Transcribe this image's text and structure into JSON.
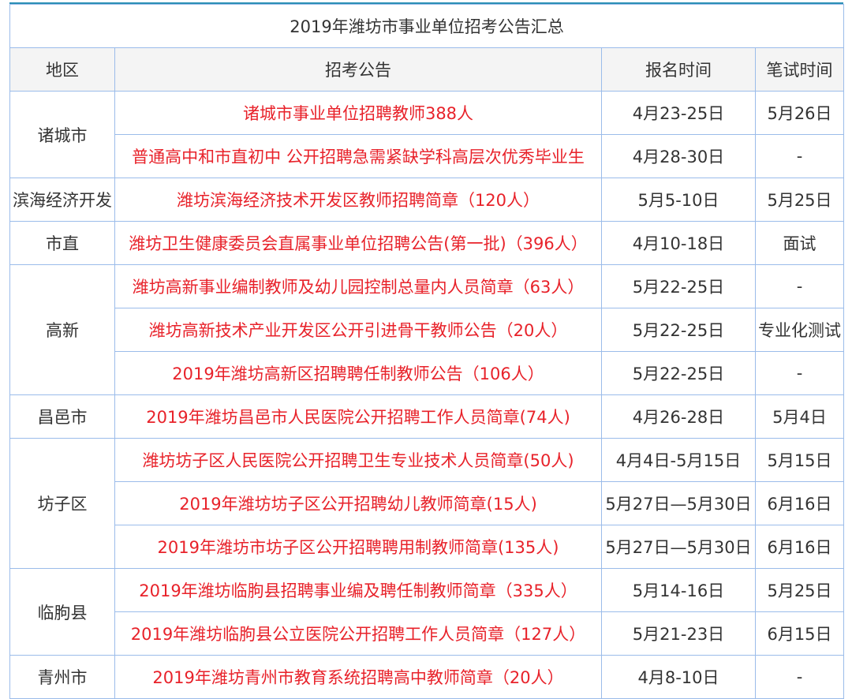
{
  "title": "2019年潍坊市事业单位招考公告汇总",
  "headers": [
    "地区",
    "招考公告",
    "报名时间",
    "笔试时间"
  ],
  "colors": {
    "notice_text": "#e8222a",
    "border": "#9bbcea",
    "header_bg": "#f4f4f4",
    "top_line": "#2a8fb5"
  },
  "groups": [
    {
      "region": "诸城市",
      "rows": [
        {
          "notice": "诸城市事业单位招聘教师388人",
          "signup": "4月23-25日",
          "exam": "5月26日"
        },
        {
          "notice": "普通高中和市直初中 公开招聘急需紧缺学科高层次优秀毕业生",
          "signup": "4月28-30日",
          "exam": "-"
        }
      ]
    },
    {
      "region": "滨海经济开发",
      "rows": [
        {
          "notice": "潍坊滨海经济技术开发区教师招聘简章（120人）",
          "signup": "5月5-10日",
          "exam": "5月25日"
        }
      ]
    },
    {
      "region": "市直",
      "rows": [
        {
          "notice": "潍坊卫生健康委员会直属事业单位招聘公告(第一批)（396人）",
          "signup": "4月10-18日",
          "exam": "面试"
        }
      ]
    },
    {
      "region": "高新",
      "rows": [
        {
          "notice": "潍坊高新事业编制教师及幼儿园控制总量内人员简章（63人）",
          "signup": "5月22-25日",
          "exam": "-"
        },
        {
          "notice": "潍坊高新技术产业开发区公开引进骨干教师公告（20人）",
          "signup": "5月22-25日",
          "exam": "专业化测试"
        },
        {
          "notice": "2019年潍坊高新区招聘聘任制教师公告（106人）",
          "signup": "5月22-25日",
          "exam": "-"
        }
      ]
    },
    {
      "region": "昌邑市",
      "rows": [
        {
          "notice": "2019年潍坊昌邑市人民医院公开招聘工作人员简章(74人)",
          "signup": "4月26-28日",
          "exam": "5月4日"
        }
      ]
    },
    {
      "region": "坊子区",
      "rows": [
        {
          "notice": "潍坊坊子区人民医院公开招聘卫生专业技术人员简章(50人)",
          "signup": "4月4日-5月15日",
          "exam": "5月15日"
        },
        {
          "notice": "2019年潍坊坊子区公开招聘幼儿教师简章(15人)",
          "signup": "5月27日—5月30日",
          "exam": "6月16日"
        },
        {
          "notice": "2019年潍坊市坊子区公开招聘聘用制教师简章(135人)",
          "signup": "5月27日—5月30日",
          "exam": "6月16日"
        }
      ]
    },
    {
      "region": "临朐县",
      "rows": [
        {
          "notice": "2019年潍坊临朐县招聘事业编及聘任制教师简章（335人）",
          "signup": "5月14-16日",
          "exam": "5月25日"
        },
        {
          "notice": "2019年潍坊临朐县公立医院公开招聘工作人员简章（127人）",
          "signup": "5月21-23日",
          "exam": "6月15日"
        }
      ]
    },
    {
      "region": "青州市",
      "rows": [
        {
          "notice": "2019年潍坊青州市教育系统招聘高中教师简章（20人）",
          "signup": "4月8-10日",
          "exam": "-"
        }
      ]
    }
  ]
}
